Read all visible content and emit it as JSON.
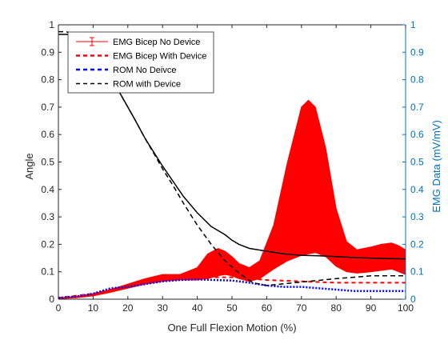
{
  "chart_data": {
    "type": "line",
    "xlabel": "One Full Flexion Motion (%)",
    "ylabel_left": "Angle",
    "ylabel_right": "EMG Data (mV/mV)",
    "xlim": [
      0,
      100
    ],
    "ylim_left": [
      0,
      1
    ],
    "ylim_right": [
      0,
      1
    ],
    "x_ticks": [
      "0",
      "10",
      "20",
      "30",
      "40",
      "50",
      "60",
      "70",
      "80",
      "90",
      "100"
    ],
    "y_ticks_left": [
      "0",
      "0.1",
      "0.2",
      "0.3",
      "0.4",
      "0.5",
      "0.6",
      "0.7",
      "0.8",
      "0.9",
      "1"
    ],
    "y_ticks_right": [
      "0",
      "0.1",
      "0.2",
      "0.3",
      "0.4",
      "0.5",
      "0.6",
      "0.7",
      "0.8",
      "0.9",
      "1"
    ],
    "grid": false,
    "legend_position": "top-left",
    "colors": {
      "emg": "#ff0000",
      "rom_no_device": "#0000ff",
      "rom_with_device": "#000000",
      "right_axis": "#0072bd",
      "axis": "#262626"
    },
    "legend": [
      "EMG Bicep No Device",
      "EMG Bicep With Device",
      "ROM No Deivce",
      "ROM with Device"
    ],
    "series": [
      {
        "name": "EMG Bicep No Device",
        "axis": "right",
        "style": "band",
        "x": [
          0,
          5,
          10,
          15,
          20,
          25,
          30,
          35,
          40,
          43,
          46,
          48,
          50,
          52,
          55,
          58,
          62,
          66,
          70,
          72,
          74,
          77,
          80,
          83,
          86,
          90,
          93,
          96,
          98,
          100
        ],
        "upper": [
          0.005,
          0.01,
          0.02,
          0.035,
          0.055,
          0.075,
          0.09,
          0.09,
          0.115,
          0.165,
          0.185,
          0.175,
          0.155,
          0.13,
          0.115,
          0.14,
          0.27,
          0.5,
          0.7,
          0.725,
          0.7,
          0.55,
          0.33,
          0.21,
          0.18,
          0.19,
          0.2,
          0.205,
          0.195,
          0.18
        ],
        "lower": [
          0.002,
          0.005,
          0.012,
          0.025,
          0.04,
          0.055,
          0.065,
          0.07,
          0.07,
          0.075,
          0.085,
          0.09,
          0.085,
          0.075,
          0.065,
          0.075,
          0.11,
          0.14,
          0.16,
          0.165,
          0.17,
          0.155,
          0.12,
          0.1,
          0.095,
          0.1,
          0.105,
          0.11,
          0.1,
          0.09
        ]
      },
      {
        "name": "EMG Bicep With Device",
        "axis": "right",
        "style": "dashed",
        "x": [
          0,
          10,
          20,
          30,
          40,
          50,
          60,
          70,
          80,
          90,
          100
        ],
        "y": [
          0.005,
          0.02,
          0.05,
          0.075,
          0.08,
          0.08,
          0.07,
          0.065,
          0.06,
          0.06,
          0.06
        ]
      },
      {
        "name": "ROM No Deivce",
        "axis": "left",
        "style": "dotted",
        "x": [
          0,
          5,
          10,
          15,
          20,
          25,
          30,
          35,
          40,
          45,
          50,
          55,
          60,
          65,
          70,
          75,
          80,
          85,
          90,
          95,
          100
        ],
        "y": [
          0.005,
          0.01,
          0.02,
          0.04,
          0.045,
          0.055,
          0.065,
          0.07,
          0.072,
          0.07,
          0.068,
          0.06,
          0.05,
          0.045,
          0.045,
          0.04,
          0.035,
          0.03,
          0.03,
          0.03,
          0.03
        ]
      },
      {
        "name": "ROM with Device",
        "axis": "left",
        "style": "dashed",
        "x": [
          0,
          2,
          4,
          6,
          8,
          10,
          12,
          14,
          16,
          18,
          20,
          22,
          25,
          28,
          30,
          33,
          36,
          40,
          44,
          48,
          52,
          56,
          60,
          64,
          68,
          72,
          76,
          80,
          85,
          90,
          95,
          100
        ],
        "y": [
          0.975,
          0.975,
          0.97,
          0.96,
          0.93,
          0.9,
          0.865,
          0.83,
          0.79,
          0.745,
          0.7,
          0.655,
          0.585,
          0.52,
          0.475,
          0.415,
          0.35,
          0.27,
          0.2,
          0.14,
          0.095,
          0.06,
          0.05,
          0.055,
          0.06,
          0.065,
          0.07,
          0.075,
          0.08,
          0.085,
          0.085,
          0.085
        ]
      },
      {
        "name": "ROM (solid)",
        "axis": "left",
        "style": "solid",
        "x": [
          0,
          2,
          4,
          6,
          8,
          10,
          12,
          14,
          16,
          18,
          20,
          22,
          25,
          28,
          30,
          33,
          36,
          40,
          44,
          48,
          50,
          52,
          55,
          60,
          65,
          70,
          75,
          80,
          85,
          90,
          95,
          100
        ],
        "y": [
          0.965,
          0.965,
          0.965,
          0.955,
          0.925,
          0.895,
          0.865,
          0.83,
          0.79,
          0.745,
          0.7,
          0.655,
          0.585,
          0.525,
          0.485,
          0.43,
          0.375,
          0.315,
          0.265,
          0.235,
          0.215,
          0.2,
          0.185,
          0.175,
          0.165,
          0.16,
          0.158,
          0.155,
          0.152,
          0.15,
          0.148,
          0.147
        ]
      }
    ]
  }
}
